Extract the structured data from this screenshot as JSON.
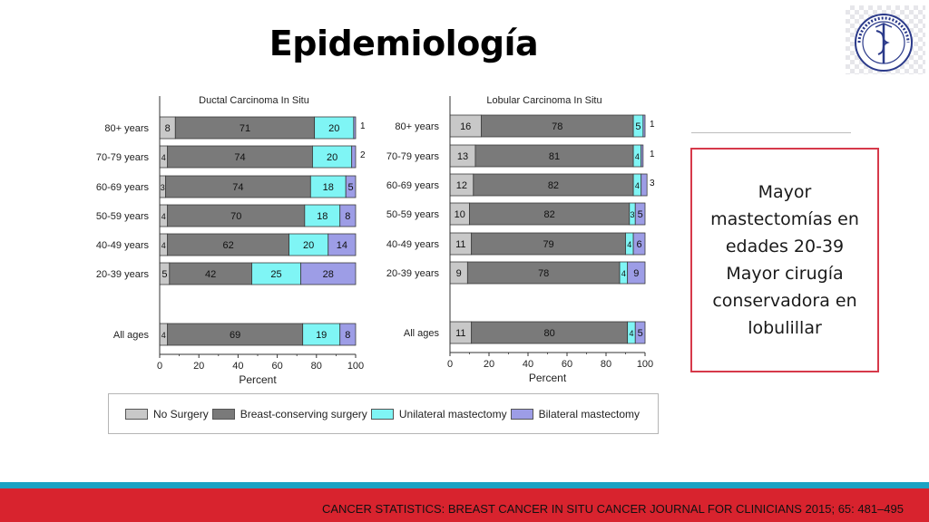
{
  "title": "Epidemiología",
  "colors": {
    "no_surgery": "#c8c8c8",
    "breast_conserving": "#7a7a7a",
    "unilateral": "#7ff5f5",
    "bilateral": "#9d9de6",
    "note_border": "#d6394a",
    "band_blue": "#1aa3c3",
    "band_red": "#d8232e"
  },
  "logo": {
    "icon": "institute-seal-icon"
  },
  "note": {
    "lines": [
      "Mayor",
      "mastectomías  en",
      "edades 20-39",
      "Mayor cirugía",
      "conservadora en",
      "lobulillar"
    ]
  },
  "legend": {
    "items": [
      {
        "label": "No Surgery",
        "color": "#c8c8c8"
      },
      {
        "label": "Breast-conserving surgery",
        "color": "#7a7a7a"
      },
      {
        "label": "Unilateral mastectomy",
        "color": "#7ff5f5"
      },
      {
        "label": "Bilateral mastectomy",
        "color": "#9d9de6"
      }
    ]
  },
  "footer": "CANCER STATISTICS: BREAST CANCER IN SITU CANCER JOURNAL FOR CLINICIANS 2015; 65: 481–495",
  "chart_data": [
    {
      "type": "bar",
      "orientation": "horizontal",
      "stacked": true,
      "title": "Ductal Carcinoma In Situ",
      "xlabel": "Percent",
      "xlim": [
        0,
        100
      ],
      "xticks": [
        0,
        20,
        40,
        60,
        80,
        100
      ],
      "categories": [
        "80+ years",
        "70-79 years",
        "60-69 years",
        "50-59 years",
        "40-49 years",
        "20-39 years",
        "All ages"
      ],
      "series": [
        {
          "name": "No Surgery",
          "values": [
            8,
            4,
            3,
            4,
            4,
            5,
            4
          ],
          "labels": [
            "8",
            "4",
            "3",
            "4",
            "4",
            "5",
            "4"
          ]
        },
        {
          "name": "Breast-conserving surgery",
          "values": [
            71,
            74,
            74,
            70,
            62,
            42,
            69
          ],
          "labels": [
            "71",
            "74",
            "74",
            "70",
            "62",
            "42",
            "69"
          ]
        },
        {
          "name": "Unilateral mastectomy",
          "values": [
            20,
            20,
            18,
            18,
            20,
            25,
            19
          ],
          "labels": [
            "20",
            "20",
            "18",
            "18",
            "20",
            "25",
            "19"
          ]
        },
        {
          "name": "Bilateral mastectomy",
          "values": [
            1,
            2,
            5,
            8,
            14,
            28,
            8
          ],
          "labels": [
            "1",
            "2",
            "5",
            "8",
            "14",
            "28",
            "8"
          ]
        }
      ],
      "grid": false,
      "legend": "bottom"
    },
    {
      "type": "bar",
      "orientation": "horizontal",
      "stacked": true,
      "title": "Lobular Carcinoma In Situ",
      "xlabel": "Percent",
      "xlim": [
        0,
        100
      ],
      "xticks": [
        0,
        20,
        40,
        60,
        80,
        100
      ],
      "categories": [
        "80+ years",
        "70-79 years",
        "60-69 years",
        "50-59 years",
        "40-49 years",
        "20-39 years",
        "All ages"
      ],
      "series": [
        {
          "name": "No Surgery",
          "values": [
            16,
            13,
            12,
            10,
            11,
            9,
            11
          ],
          "labels": [
            "16",
            "13",
            "12",
            "10",
            "11",
            "9",
            "11"
          ]
        },
        {
          "name": "Breast-conserving surgery",
          "values": [
            78,
            81,
            82,
            82,
            79,
            78,
            80
          ],
          "labels": [
            "78",
            "81",
            "82",
            "82",
            "79",
            "78",
            "80"
          ]
        },
        {
          "name": "Unilateral mastectomy",
          "values": [
            5,
            4,
            4,
            3,
            4,
            4,
            4
          ],
          "labels": [
            "5",
            "4",
            "4",
            "3",
            "4",
            "4",
            "4"
          ]
        },
        {
          "name": "Bilateral mastectomy",
          "values": [
            1,
            1,
            3,
            5,
            6,
            9,
            5
          ],
          "labels": [
            "1",
            "1",
            "3",
            "5",
            "6",
            "9",
            "5"
          ]
        }
      ],
      "grid": false,
      "legend": "bottom"
    }
  ]
}
